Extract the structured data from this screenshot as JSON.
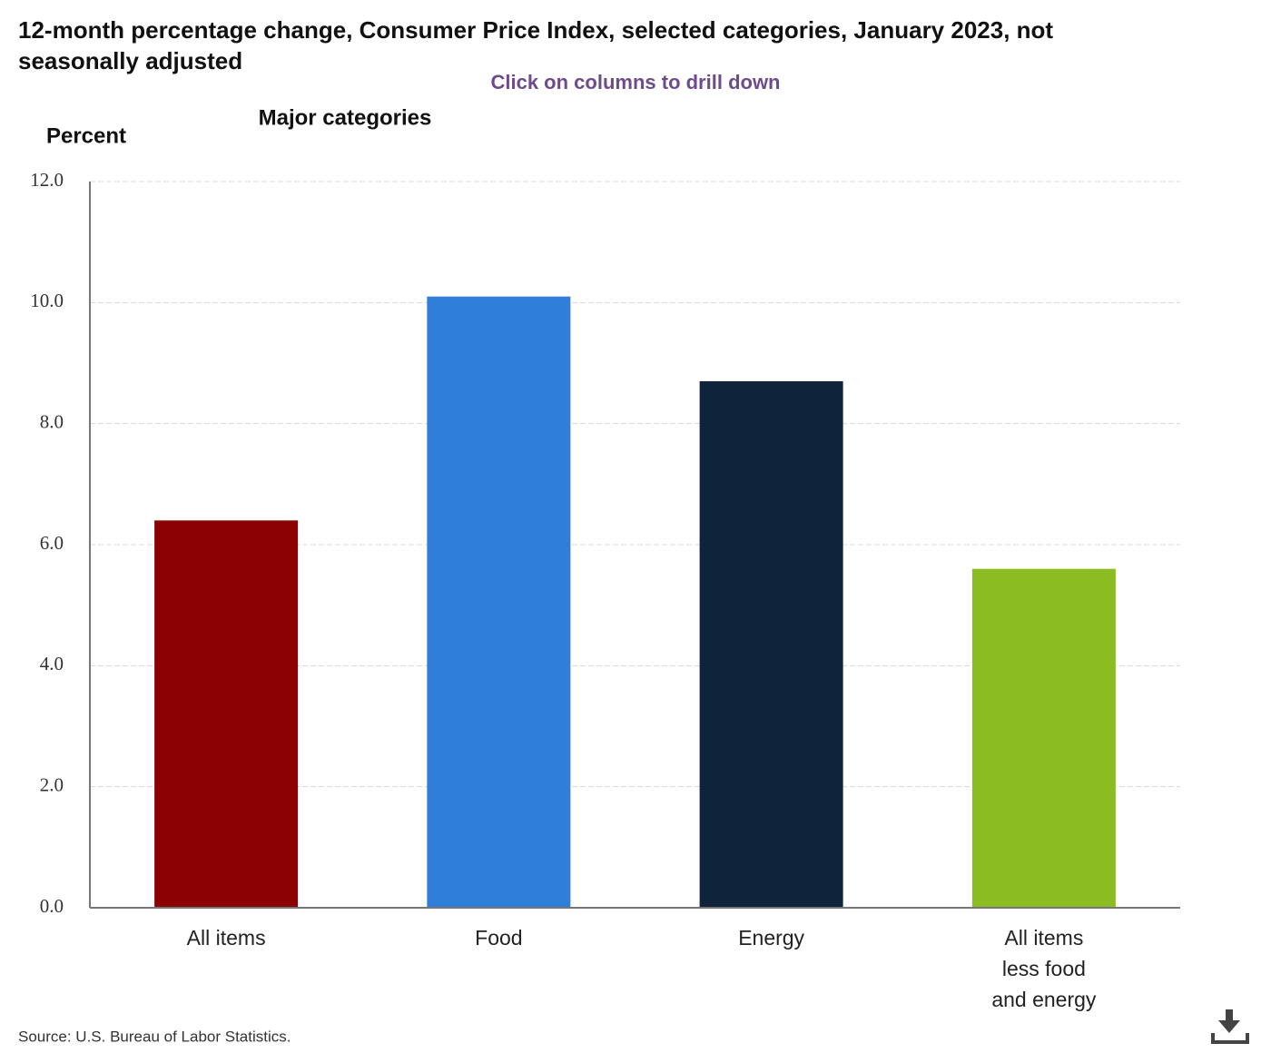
{
  "chart_data": {
    "type": "bar",
    "title": "12-month percentage change, Consumer Price Index, selected categories, January 2023, not seasonally adjusted",
    "subtitle": "Click on columns to drill down",
    "chart_label": "Major categories",
    "y_label": "Percent",
    "source": "Source: U.S. Bureau of Labor Statistics.",
    "categories": [
      "All items",
      "Food",
      "Energy",
      "All items less food and energy"
    ],
    "values": [
      6.4,
      10.1,
      8.7,
      5.6
    ],
    "colors": [
      "#8b0000",
      "#2f7ed8",
      "#0f233b",
      "#8bbc21"
    ],
    "ylim": [
      0,
      12
    ],
    "yticks": [
      {
        "value": 0,
        "label": "0.0"
      },
      {
        "value": 2,
        "label": "2.0"
      },
      {
        "value": 4,
        "label": "4.0"
      },
      {
        "value": 6,
        "label": "6.0"
      },
      {
        "value": 8,
        "label": "8.0"
      },
      {
        "value": 10,
        "label": "10.0"
      },
      {
        "value": 12,
        "label": "12.0"
      }
    ],
    "grid": true
  }
}
